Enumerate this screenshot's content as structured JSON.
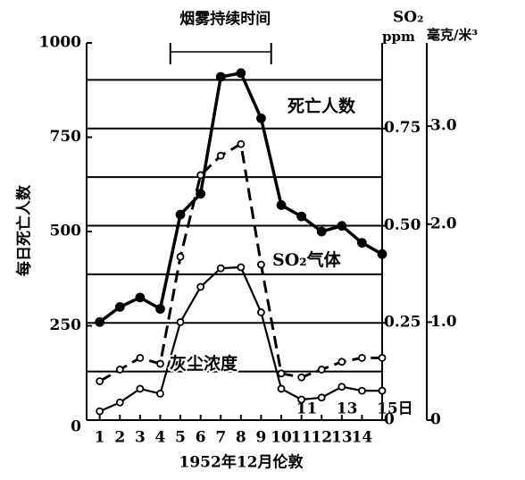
{
  "chart_data": {
    "type": "line",
    "y_label": "每日死亡人数",
    "x_label": "1952年12月伦敦",
    "annotation": "烟雾持续时间",
    "smog_span": [
      4.5,
      9.5
    ],
    "y2_header": "SO₂",
    "y2_unit": "ppm",
    "y3_unit": "毫克/米³",
    "x": [
      1,
      2,
      3,
      4,
      5,
      6,
      7,
      8,
      9,
      10,
      11,
      12,
      13,
      14,
      15
    ],
    "xlim": [
      0.35,
      15
    ],
    "xticks": [
      1,
      2,
      3,
      4,
      5,
      6,
      7,
      8,
      9,
      10,
      11,
      12,
      13,
      14
    ],
    "inner_day_labels": [
      11,
      13,
      {
        "value": 15,
        "label": "15日"
      }
    ],
    "ylim": [
      0,
      1000
    ],
    "yticks": [
      0,
      250,
      500,
      750,
      1000
    ],
    "y2lim": [
      0,
      0.97
    ],
    "y2ticks": [
      0,
      0.25,
      {
        "value": 0.5,
        "label": "0.50"
      },
      0.75
    ],
    "y2grid": [
      0.125,
      0.25,
      0.375,
      0.5,
      0.625,
      0.75,
      0.875
    ],
    "y3lim": [
      0,
      3.85
    ],
    "y3ticks": [
      0,
      {
        "value": 1,
        "label": "1.0"
      },
      {
        "value": 2,
        "label": "2.0"
      },
      {
        "value": 3,
        "label": "3.0"
      }
    ],
    "series": [
      {
        "name": "死亡人数",
        "color": "#000000",
        "values": [
          260,
          300,
          325,
          295,
          545,
          600,
          910,
          920,
          800,
          570,
          540,
          500,
          515,
          470,
          440
        ]
      },
      {
        "name": "SO₂气体",
        "color": "#000000",
        "axis": "y2",
        "values": [
          0.1,
          0.13,
          0.16,
          0.145,
          0.42,
          0.63,
          0.68,
          0.71,
          0.4,
          0.12,
          0.11,
          0.13,
          0.15,
          0.16,
          0.16
        ]
      },
      {
        "name": "灰尘浓度",
        "color": "#000000",
        "axis": "y3",
        "values": [
          0.09,
          0.18,
          0.32,
          0.27,
          1.0,
          1.36,
          1.55,
          1.56,
          1.1,
          0.32,
          0.21,
          0.23,
          0.34,
          0.3,
          0.3
        ]
      }
    ]
  }
}
